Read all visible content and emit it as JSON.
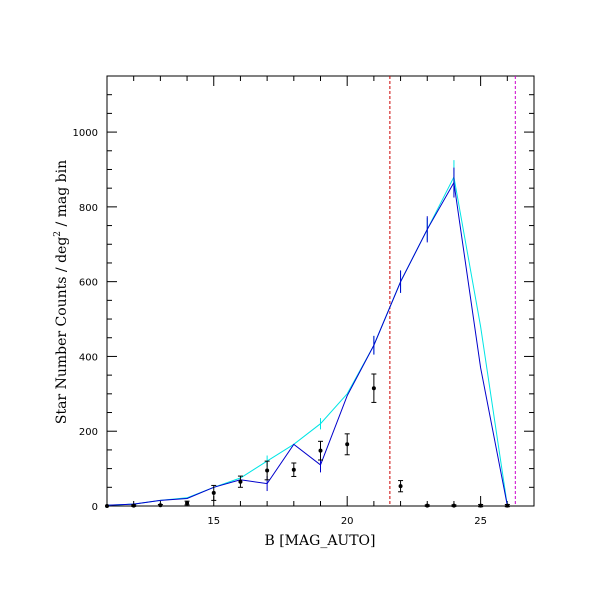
{
  "chart_data": {
    "type": "line",
    "xlabel": "B [MAG_AUTO]",
    "ylabel_parts": [
      "Star Number Counts / deg",
      "2",
      " / mag bin"
    ],
    "xlim": [
      11,
      27
    ],
    "ylim": [
      0,
      1150
    ],
    "x_ticks_major": [
      15,
      20,
      25
    ],
    "y_ticks_major": [
      0,
      200,
      400,
      600,
      800,
      1000
    ],
    "x_minor_step": 1,
    "y_minor_step": 50,
    "grid": false,
    "colors": {
      "model_cyan": "#00e5e5",
      "model_blue": "#0000cc",
      "observed": "#000000",
      "vline_red": "#cc0000",
      "vline_magenta": "#cc00cc"
    },
    "series": [
      {
        "style": "cyan-line",
        "x": [
          11,
          12,
          13,
          14,
          15,
          16,
          17,
          18,
          19,
          20,
          21,
          22,
          23,
          24,
          25,
          26
        ],
        "y": [
          2,
          5,
          15,
          22,
          50,
          75,
          120,
          165,
          220,
          300,
          430,
          600,
          740,
          880,
          480,
          2
        ],
        "err": [
          0,
          0,
          0,
          0,
          0,
          0,
          15,
          0,
          15,
          0,
          25,
          30,
          30,
          45,
          0,
          0
        ]
      },
      {
        "style": "blue-line",
        "x": [
          11,
          12,
          13,
          14,
          15,
          16,
          17,
          18,
          19,
          20,
          21,
          22,
          23,
          24,
          25,
          26
        ],
        "y": [
          2,
          5,
          15,
          20,
          50,
          70,
          60,
          165,
          110,
          295,
          430,
          600,
          740,
          865,
          370,
          2
        ],
        "err": [
          0,
          3,
          0,
          0,
          0,
          0,
          20,
          0,
          20,
          0,
          25,
          30,
          35,
          40,
          0,
          0
        ]
      },
      {
        "style": "observed-points",
        "x": [
          11,
          12,
          13,
          14,
          15,
          16,
          17,
          18,
          19,
          20,
          21,
          22,
          23,
          24,
          25,
          26
        ],
        "y": [
          0,
          1,
          2,
          8,
          35,
          65,
          95,
          97,
          148,
          165,
          315,
          53,
          1,
          1,
          1,
          1
        ],
        "err": [
          0,
          2,
          2,
          5,
          20,
          15,
          25,
          18,
          25,
          28,
          38,
          15,
          2,
          2,
          3,
          3
        ]
      }
    ],
    "vlines": [
      {
        "x": 21.6,
        "style": "red-dashed"
      },
      {
        "x": 26.3,
        "style": "magenta-dashed"
      }
    ]
  }
}
